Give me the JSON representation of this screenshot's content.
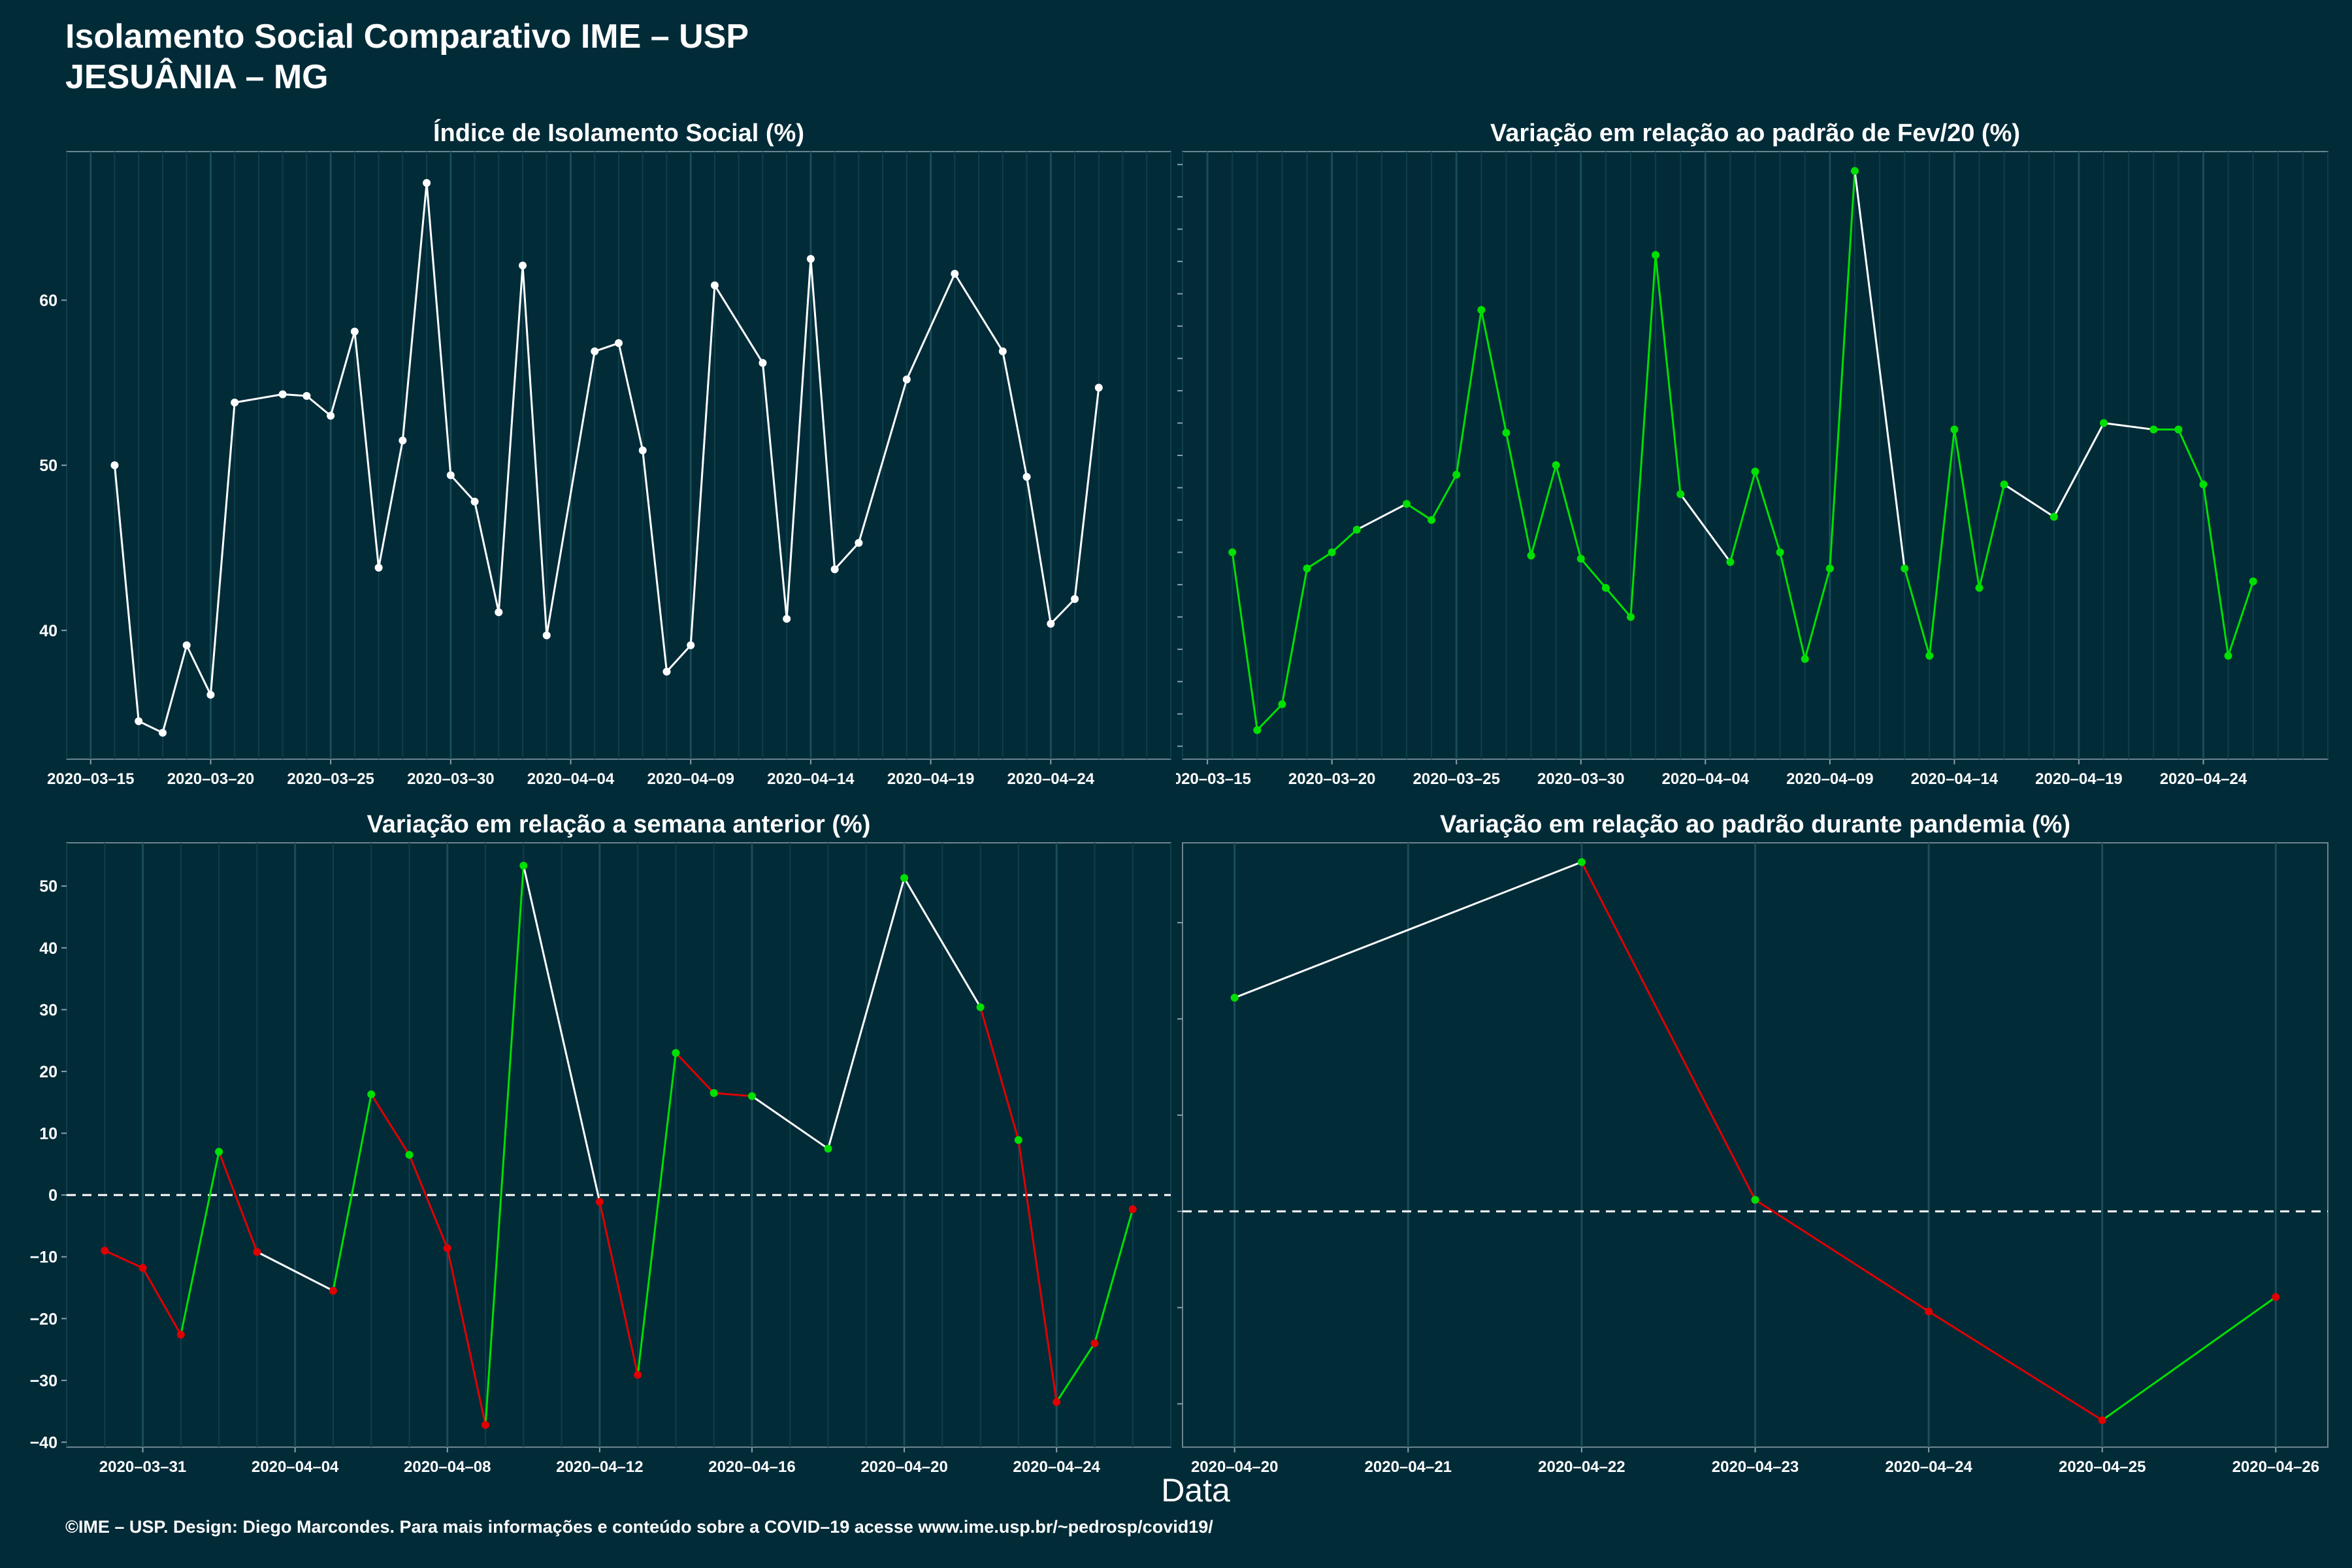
{
  "header": {
    "title": "Isolamento Social Comparativo IME – USP",
    "subtitle": "JESUÂNIA – MG"
  },
  "footer": "©IME – USP. Design: Diego Marcondes. Para mais informações e conteúdo sobre a COVID–19 acesse www.ime.usp.br/~pedrosp/covid19/",
  "xlabel": "Data",
  "colors": {
    "background": "#022b38",
    "white": "#ffffff",
    "green": "#00e000",
    "red": "#e00000"
  },
  "chart_data": [
    {
      "type": "line",
      "title": "Índice de Isolamento Social (%)",
      "x_start": "2020-03-16",
      "x_tick_labels": [
        "2020–03–15",
        "2020–03–20",
        "2020–03–25",
        "2020–03–30",
        "2020–04–04",
        "2020–04–09",
        "2020–04–14",
        "2020–04–19",
        "2020–04–24"
      ],
      "y_ticks": [
        40,
        50,
        60
      ],
      "xlim": [
        "2020-03-14",
        "2020-04-29"
      ],
      "ylim": [
        32.2,
        69.0
      ],
      "grid": true,
      "color_points": false,
      "x": [
        "2020-03-16",
        "2020-03-17",
        "2020-03-18",
        "2020-03-19",
        "2020-03-20",
        "2020-03-21",
        "2020-03-23",
        "2020-03-24",
        "2020-03-25",
        "2020-03-26",
        "2020-03-27",
        "2020-03-28",
        "2020-03-29",
        "2020-03-30",
        "2020-03-31",
        "2020-04-01",
        "2020-04-02",
        "2020-04-03",
        "2020-04-05",
        "2020-04-06",
        "2020-04-07",
        "2020-04-08",
        "2020-04-09",
        "2020-04-10",
        "2020-04-12",
        "2020-04-13",
        "2020-04-14",
        "2020-04-15",
        "2020-04-16",
        "2020-04-18",
        "2020-04-20",
        "2020-04-22",
        "2020-04-23",
        "2020-04-24",
        "2020-04-25",
        "2020-04-26"
      ],
      "values": [
        50.0,
        34.5,
        33.8,
        39.1,
        36.1,
        53.8,
        54.3,
        54.2,
        53.0,
        58.1,
        43.8,
        51.5,
        67.1,
        49.4,
        47.8,
        41.1,
        62.1,
        39.7,
        56.9,
        57.4,
        50.9,
        37.5,
        39.1,
        60.9,
        56.2,
        40.7,
        62.5,
        43.7,
        45.3,
        55.2,
        61.6,
        56.9,
        49.3,
        40.4,
        41.9,
        54.7
      ]
    },
    {
      "type": "line",
      "title": "Variação em relação ao padrão de Fev/20 (%)",
      "x_start": "2020-03-16",
      "x_tick_labels": [
        "2020–03–15",
        "2020–03–20",
        "2020–03–25",
        "2020–03–30",
        "2020–04–04",
        "2020–04–09",
        "2020–04–14",
        "2020–04–19",
        "2020–04–24"
      ],
      "y_ticks": [
        10,
        20,
        30,
        40,
        50,
        60,
        70,
        80,
        90,
        100,
        110,
        120,
        130,
        140,
        150,
        160,
        170,
        180,
        190
      ],
      "xlim": [
        "2020-03-14",
        "2020-04-29"
      ],
      "ylim": [
        6,
        194
      ],
      "grid": true,
      "color_points": true,
      "x": [
        "2020-03-16",
        "2020-03-17",
        "2020-03-18",
        "2020-03-19",
        "2020-03-20",
        "2020-03-21",
        "2020-03-23",
        "2020-03-24",
        "2020-03-25",
        "2020-03-26",
        "2020-03-27",
        "2020-03-28",
        "2020-03-29",
        "2020-03-30",
        "2020-03-31",
        "2020-04-01",
        "2020-04-02",
        "2020-04-03",
        "2020-04-05",
        "2020-04-06",
        "2020-04-07",
        "2020-04-08",
        "2020-04-09",
        "2020-04-10",
        "2020-04-12",
        "2020-04-13",
        "2020-04-14",
        "2020-04-15",
        "2020-04-16",
        "2020-04-18",
        "2020-04-20",
        "2020-04-22",
        "2020-04-23",
        "2020-04-24",
        "2020-04-25",
        "2020-04-26"
      ],
      "values": [
        70,
        15,
        23,
        65,
        70,
        77,
        85,
        80,
        94,
        145,
        107,
        69,
        97,
        68,
        59,
        50,
        162,
        88,
        67,
        95,
        70,
        37,
        65,
        188,
        65,
        38,
        108,
        59,
        91,
        81,
        110,
        108,
        108,
        91,
        38,
        61
      ]
    },
    {
      "type": "line",
      "title": "Variação em relação a semana anterior (%)",
      "x_start": "2020-03-30",
      "x_tick_labels": [
        "2020–03–31",
        "2020–04–04",
        "2020–04–08",
        "2020–04–12",
        "2020–04–16",
        "2020–04–20",
        "2020–04–24"
      ],
      "y_ticks": [
        -40,
        -30,
        -20,
        -10,
        0,
        10,
        20,
        30,
        40,
        50
      ],
      "xlim": [
        "2020-03-29",
        "2020-04-27"
      ],
      "ylim": [
        -40.8,
        57
      ],
      "grid": true,
      "zero_line": true,
      "color_points": true,
      "x": [
        "2020-03-30",
        "2020-03-31",
        "2020-04-01",
        "2020-04-02",
        "2020-04-03",
        "2020-04-05",
        "2020-04-06",
        "2020-04-07",
        "2020-04-08",
        "2020-04-09",
        "2020-04-10",
        "2020-04-12",
        "2020-04-13",
        "2020-04-14",
        "2020-04-15",
        "2020-04-16",
        "2020-04-18",
        "2020-04-20",
        "2020-04-22",
        "2020-04-23",
        "2020-04-24",
        "2020-04-25",
        "2020-04-26"
      ],
      "values": [
        -9.0,
        -11.8,
        -22.6,
        7.0,
        -9.2,
        -15.5,
        16.3,
        6.5,
        -8.6,
        -37.2,
        53.3,
        -1.1,
        -29.1,
        23.0,
        16.5,
        16.0,
        7.5,
        51.3,
        30.4,
        8.9,
        -33.5,
        -24.0,
        -2.3
      ]
    },
    {
      "type": "line",
      "title": "Variação em relação ao padrão durante pandemia (%)",
      "x_start": "2020-04-20",
      "x_tick_labels": [
        "2020–04–20",
        "2020–04–21",
        "2020–04–22",
        "2020–04–23",
        "2020–04–24",
        "2020–04–25",
        "2020–04–26"
      ],
      "y_ticks": [
        -20,
        -10,
        0,
        10,
        20,
        30
      ],
      "xlim": [
        "2020-04-19.7",
        "2020-04-26.3"
      ],
      "ylim": [
        -24.5,
        38.3
      ],
      "grid": true,
      "zero_line": true,
      "color_points": true,
      "x": [
        "2020-04-20",
        "2020-04-22",
        "2020-04-23",
        "2020-04-24",
        "2020-04-25",
        "2020-04-26"
      ],
      "values": [
        22.2,
        36.3,
        1.2,
        -10.4,
        -21.7,
        -8.9
      ]
    }
  ]
}
